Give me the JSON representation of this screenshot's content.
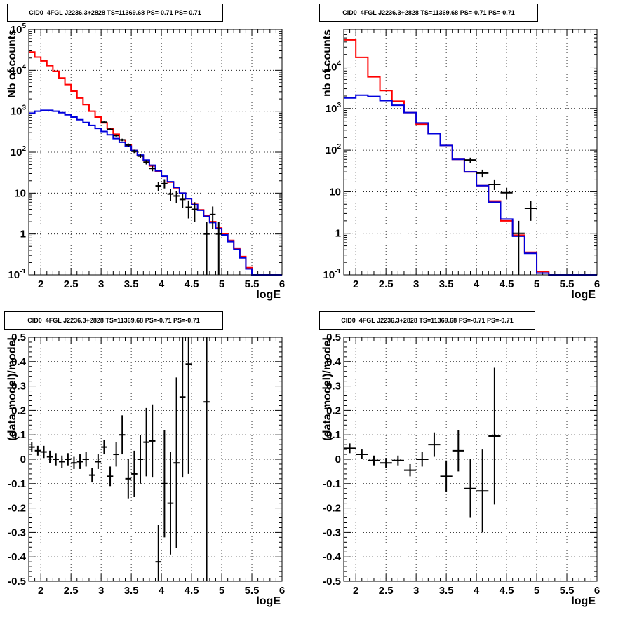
{
  "chart_data": [
    {
      "type": "histogram",
      "title": "CID0_4FGL J2236.3+2828 TS=11369.68 PS=-0.71 PS=-0.71",
      "xlabel": "logE",
      "ylabel": "Nb of counts",
      "xlim": [
        1.8,
        6.0
      ],
      "ylim": [
        0.1,
        100000
      ],
      "yscale": "log",
      "xticks": [
        "2",
        "2.5",
        "3",
        "3.5",
        "4",
        "4.5",
        "5",
        "5.5",
        "6"
      ],
      "yticks": [
        "10^-1",
        "1",
        "10",
        "10^2",
        "10^3",
        "10^4",
        "10^5"
      ],
      "grid": true,
      "bin_width": 0.1,
      "bin_edges_start": 1.8,
      "series": [
        {
          "color": "#ff0000",
          "kind": "step",
          "values": [
            28000,
            21000,
            17000,
            13000,
            9500,
            6500,
            4500,
            3100,
            2100,
            1450,
            1000,
            720,
            520,
            380,
            275,
            200,
            150,
            110,
            82,
            62,
            46,
            34,
            25,
            18.5,
            13.5,
            10,
            7.3,
            5.3,
            3.9,
            2.8,
            2.0,
            1.4,
            1.0,
            0.7,
            0.45,
            0.28,
            0.15,
            0.1,
            0.1,
            0.1,
            0.1,
            0.1
          ]
        },
        {
          "color": "#0000dd",
          "kind": "step",
          "values": [
            900,
            1000,
            1050,
            1050,
            1000,
            920,
            820,
            720,
            620,
            530,
            450,
            380,
            320,
            265,
            215,
            175,
            140,
            110,
            85,
            64,
            48,
            35,
            26,
            19,
            13.8,
            10,
            7.3,
            5.2,
            3.8,
            2.7,
            1.9,
            1.35,
            0.95,
            0.65,
            0.42,
            0.26,
            0.14,
            0.1,
            0.1,
            0.1,
            0.1,
            0.1
          ]
        },
        {
          "color": "#000000",
          "kind": "errorbar",
          "points": [
            {
              "x": 3.05,
              "y": 540,
              "lo": 515,
              "hi": 565
            },
            {
              "x": 3.15,
              "y": 360,
              "lo": 340,
              "hi": 380
            },
            {
              "x": 3.25,
              "y": 255,
              "lo": 238,
              "hi": 272
            },
            {
              "x": 3.35,
              "y": 200,
              "lo": 186,
              "hi": 214
            },
            {
              "x": 3.45,
              "y": 150,
              "lo": 137,
              "hi": 163
            },
            {
              "x": 3.55,
              "y": 105,
              "lo": 95,
              "hi": 115
            },
            {
              "x": 3.65,
              "y": 80,
              "lo": 71,
              "hi": 89
            },
            {
              "x": 3.75,
              "y": 57,
              "lo": 50,
              "hi": 64
            },
            {
              "x": 3.85,
              "y": 40,
              "lo": 34,
              "hi": 46
            },
            {
              "x": 3.95,
              "y": 15,
              "lo": 11,
              "hi": 19
            },
            {
              "x": 4.05,
              "y": 17,
              "lo": 13,
              "hi": 21
            },
            {
              "x": 4.15,
              "y": 9.5,
              "lo": 6.5,
              "hi": 12.5
            },
            {
              "x": 4.25,
              "y": 8.5,
              "lo": 5.6,
              "hi": 11.4
            },
            {
              "x": 4.35,
              "y": 7,
              "lo": 4.3,
              "hi": 9.7
            },
            {
              "x": 4.45,
              "y": 4.5,
              "lo": 2.4,
              "hi": 6.6
            },
            {
              "x": 4.55,
              "y": 4,
              "lo": 2,
              "hi": 6
            },
            {
              "x": 4.75,
              "y": 1,
              "lo": 0.1,
              "hi": 2
            },
            {
              "x": 4.85,
              "y": 3,
              "lo": 1.3,
              "hi": 4.7
            },
            {
              "x": 4.95,
              "y": 1,
              "lo": 0.1,
              "hi": 2
            }
          ]
        }
      ]
    },
    {
      "type": "histogram",
      "title": "CID0_4FGL J2236.3+2828 TS=11369.68 PS=-0.71 PS=-0.71",
      "xlabel": "logE",
      "ylabel": "nb of counts",
      "xlim": [
        1.8,
        6.0
      ],
      "ylim": [
        0.1,
        80000
      ],
      "yscale": "log",
      "xticks": [
        "2",
        "2.5",
        "3",
        "3.5",
        "4",
        "4.5",
        "5",
        "5.5",
        "6"
      ],
      "yticks": [
        "10^-1",
        "1",
        "10",
        "10^2",
        "10^3",
        "10^4"
      ],
      "grid": true,
      "bin_width": 0.2,
      "bin_edges_start": 1.8,
      "series": [
        {
          "color": "#ff0000",
          "kind": "step",
          "values": [
            45000,
            17000,
            5800,
            2700,
            1500,
            800,
            420,
            250,
            130,
            60,
            30,
            14,
            6,
            2,
            0.9,
            0.35,
            0.12,
            0.1,
            0.1,
            0.1,
            0.1
          ]
        },
        {
          "color": "#0000dd",
          "kind": "step",
          "values": [
            1800,
            2100,
            1950,
            1550,
            1200,
            800,
            450,
            250,
            130,
            60,
            30,
            14,
            5.6,
            2.2,
            0.85,
            0.33,
            0.11,
            0.1,
            0.1,
            0.1,
            0.1
          ]
        },
        {
          "color": "#000000",
          "kind": "errorbar",
          "points": [
            {
              "x": 3.9,
              "y": 58,
              "lo": 50,
              "hi": 66
            },
            {
              "x": 4.1,
              "y": 28,
              "lo": 22,
              "hi": 34
            },
            {
              "x": 4.3,
              "y": 15,
              "lo": 11,
              "hi": 19
            },
            {
              "x": 4.5,
              "y": 9.5,
              "lo": 6.5,
              "hi": 12.5
            },
            {
              "x": 4.7,
              "y": 1,
              "lo": 0.1,
              "hi": 2
            },
            {
              "x": 4.9,
              "y": 4,
              "lo": 2,
              "hi": 6
            }
          ]
        }
      ]
    },
    {
      "type": "scatter",
      "title": "CID0_4FGL J2236.3+2828 TS=11369.68 PS=-0.71 PS=-0.71",
      "xlabel": "logE",
      "ylabel": "(data-model)/model",
      "xlim": [
        1.8,
        6.0
      ],
      "ylim": [
        -0.5,
        0.5
      ],
      "xticks": [
        "2",
        "2.5",
        "3",
        "3.5",
        "4",
        "4.5",
        "5",
        "5.5",
        "6"
      ],
      "yticks": [
        "-0.5",
        "-0.4",
        "-0.3",
        "-0.2",
        "-0.1",
        "0",
        "0.1",
        "0.2",
        "0.3",
        "0.4",
        "0.5"
      ],
      "grid": true,
      "bin_width": 0.1,
      "points": [
        {
          "x": 1.85,
          "y": 0.05,
          "err": 0.02
        },
        {
          "x": 1.95,
          "y": 0.035,
          "err": 0.02
        },
        {
          "x": 2.05,
          "y": 0.03,
          "err": 0.025
        },
        {
          "x": 2.15,
          "y": 0.01,
          "err": 0.025
        },
        {
          "x": 2.25,
          "y": 0.0,
          "err": 0.025
        },
        {
          "x": 2.35,
          "y": -0.01,
          "err": 0.025
        },
        {
          "x": 2.45,
          "y": 0.0,
          "err": 0.025
        },
        {
          "x": 2.55,
          "y": -0.015,
          "err": 0.025
        },
        {
          "x": 2.65,
          "y": -0.01,
          "err": 0.03
        },
        {
          "x": 2.75,
          "y": 0.0,
          "err": 0.03
        },
        {
          "x": 2.85,
          "y": -0.065,
          "err": 0.03
        },
        {
          "x": 2.95,
          "y": -0.01,
          "err": 0.03
        },
        {
          "x": 3.05,
          "y": 0.05,
          "err": 0.03
        },
        {
          "x": 3.15,
          "y": -0.07,
          "err": 0.04
        },
        {
          "x": 3.25,
          "y": 0.02,
          "err": 0.05
        },
        {
          "x": 3.35,
          "y": 0.1,
          "err": 0.08
        },
        {
          "x": 3.45,
          "y": -0.08,
          "err": 0.08
        },
        {
          "x": 3.55,
          "y": -0.06,
          "err": 0.095
        },
        {
          "x": 3.65,
          "y": 0.0,
          "err": 0.1
        },
        {
          "x": 3.75,
          "y": 0.07,
          "err": 0.14
        },
        {
          "x": 3.85,
          "y": 0.075,
          "err": 0.15
        },
        {
          "x": 3.95,
          "y": -0.42,
          "err": 0.15
        },
        {
          "x": 4.05,
          "y": -0.1,
          "err": 0.22
        },
        {
          "x": 4.15,
          "y": -0.18,
          "err": 0.21
        },
        {
          "x": 4.25,
          "y": -0.015,
          "err": 0.35
        },
        {
          "x": 4.35,
          "y": 0.255,
          "err": 0.33
        },
        {
          "x": 4.45,
          "y": 0.39,
          "err": 0.45
        },
        {
          "x": 4.75,
          "y": 0.235,
          "err": 1.0
        }
      ]
    },
    {
      "type": "scatter",
      "title": "CID0_4FGL J2236.3+2828 TS=11369.68 PS=-0.71 PS=-0.71",
      "xlabel": "logE",
      "ylabel": "(data-model)/model",
      "xlim": [
        1.8,
        6.0
      ],
      "ylim": [
        -0.5,
        0.5
      ],
      "xticks": [
        "2",
        "2.5",
        "3",
        "3.5",
        "4",
        "4.5",
        "5",
        "5.5",
        "6"
      ],
      "yticks": [
        "-0.5",
        "-0.4",
        "-0.3",
        "-0.2",
        "-0.1",
        "0",
        "0.1",
        "0.2",
        "0.3",
        "0.4",
        "0.5"
      ],
      "grid": true,
      "bin_width": 0.2,
      "points": [
        {
          "x": 1.9,
          "y": 0.045,
          "err": 0.02
        },
        {
          "x": 2.1,
          "y": 0.02,
          "err": 0.02
        },
        {
          "x": 2.3,
          "y": -0.005,
          "err": 0.02
        },
        {
          "x": 2.5,
          "y": -0.015,
          "err": 0.02
        },
        {
          "x": 2.7,
          "y": -0.005,
          "err": 0.02
        },
        {
          "x": 2.9,
          "y": -0.045,
          "err": 0.025
        },
        {
          "x": 3.1,
          "y": 0.0,
          "err": 0.03
        },
        {
          "x": 3.3,
          "y": 0.06,
          "err": 0.05
        },
        {
          "x": 3.5,
          "y": -0.07,
          "err": 0.065
        },
        {
          "x": 3.7,
          "y": 0.035,
          "err": 0.085
        },
        {
          "x": 3.9,
          "y": -0.12,
          "err": 0.12
        },
        {
          "x": 4.1,
          "y": -0.13,
          "err": 0.17
        },
        {
          "x": 4.3,
          "y": 0.095,
          "err": 0.28
        }
      ]
    }
  ]
}
